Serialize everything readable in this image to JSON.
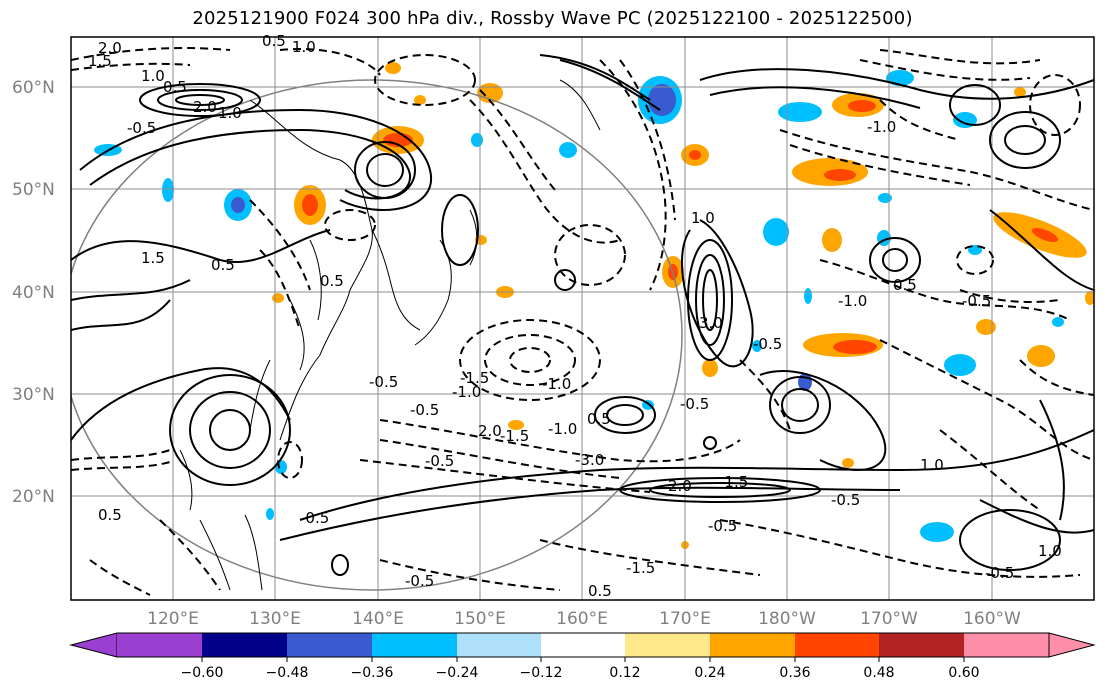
{
  "title": "2025121900 F024 300 hPa div., Rossby Wave PC (2025122100 - 2025122500)",
  "map": {
    "lat_labels": [
      "60°N",
      "50°N",
      "40°N",
      "30°N",
      "20°N"
    ],
    "lon_labels": [
      "120°E",
      "130°E",
      "140°E",
      "150°E",
      "160°E",
      "170°E",
      "180°W",
      "170°W",
      "160°W"
    ],
    "extent": {
      "lon_min": 110,
      "lon_max": 210,
      "lat_min": 10,
      "lat_max": 65
    },
    "contour_labels": [
      "2.0",
      "1.5",
      "1.0",
      "0.5",
      "-0.5",
      "1.0",
      "0.5",
      "1.5",
      "2.0",
      "1.0",
      "0.5",
      "0.5",
      "-0.5",
      "-1.0",
      "-1.5",
      "2.0",
      "3.0",
      "-0.5",
      "-0.5",
      "-1.0",
      "1.0",
      "0.5",
      "-0.5",
      "-1.0",
      "-1.5",
      "-3.0",
      "-0.5",
      "-0.5",
      "2.0",
      "-1.5",
      "-0.5",
      "-0.5",
      "1.0",
      "-1.0",
      "0.5",
      "-1.5",
      "0.5",
      "-0.5",
      "1.0",
      "-0.5",
      "0.5",
      "-1.0",
      "-0.5"
    ],
    "colors": {
      "contour": "#000000",
      "grid": "#8c8c8c",
      "coast": "#000000",
      "circle": "#808080"
    }
  },
  "colorbar": {
    "ticks": [
      "−0.60",
      "−0.48",
      "−0.36",
      "−0.24",
      "−0.12",
      "0.12",
      "0.24",
      "0.36",
      "0.48",
      "0.60"
    ],
    "colors": [
      "#9a3fd0",
      "#00008b",
      "#3a5bd0",
      "#00bfff",
      "#aee0fa",
      "#ffffff",
      "#ffe88a",
      "#ffa500",
      "#ff4500",
      "#b22222",
      "#ff8fa8"
    ]
  }
}
